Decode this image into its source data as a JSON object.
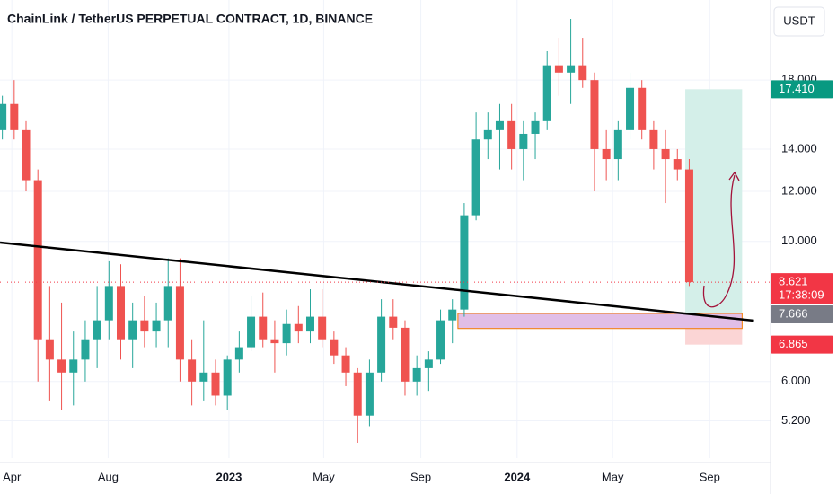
{
  "chart_data": {
    "type": "candlestick",
    "title": "ChainLink / TetherUS PERPETUAL CONTRACT, 1D, BINANCE",
    "currency": "USDT",
    "log_scale": true,
    "up_color": "#26a69a",
    "down_color": "#ef5350",
    "x": [
      "2022-03-20",
      "2022-04-04",
      "2022-04-19",
      "2022-05-04",
      "2022-05-19",
      "2022-06-03",
      "2022-06-18",
      "2022-07-03",
      "2022-07-18",
      "2022-08-02",
      "2022-08-17",
      "2022-09-01",
      "2022-09-16",
      "2022-10-01",
      "2022-10-16",
      "2022-10-31",
      "2022-11-15",
      "2022-11-30",
      "2022-12-15",
      "2022-12-30",
      "2023-01-14",
      "2023-01-29",
      "2023-02-13",
      "2023-02-28",
      "2023-03-15",
      "2023-03-30",
      "2023-04-14",
      "2023-04-29",
      "2023-05-14",
      "2023-05-29",
      "2023-06-13",
      "2023-06-28",
      "2023-07-13",
      "2023-07-28",
      "2023-08-12",
      "2023-08-27",
      "2023-09-11",
      "2023-09-26",
      "2023-10-11",
      "2023-10-26",
      "2023-11-10",
      "2023-11-25",
      "2023-12-10",
      "2023-12-25",
      "2024-01-09",
      "2024-01-24",
      "2024-02-08",
      "2024-02-23",
      "2024-03-09",
      "2024-03-24",
      "2024-04-08",
      "2024-04-23",
      "2024-05-08",
      "2024-05-23",
      "2024-06-07",
      "2024-06-22",
      "2024-07-07",
      "2024-07-22",
      "2024-08-06"
    ],
    "open": [
      15,
      16.5,
      15,
      12.5,
      7,
      6.5,
      6.2,
      6.5,
      7,
      7.5,
      8.5,
      7,
      7.5,
      7.2,
      7.5,
      8.5,
      6.5,
      6,
      6.2,
      5.7,
      6.5,
      6.8,
      7.6,
      7,
      6.9,
      7.4,
      7.2,
      7.6,
      7,
      6.6,
      6.2,
      5.3,
      6.2,
      7.6,
      7.3,
      6,
      6.3,
      6.5,
      7.5,
      7.8,
      11,
      14.5,
      15,
      15.5,
      14,
      14.8,
      15.5,
      19,
      18.5,
      19,
      18,
      14,
      13.5,
      15,
      17.5,
      15,
      14,
      13.5,
      13
    ],
    "high": [
      17,
      18,
      15.5,
      13,
      8.5,
      8,
      7.2,
      7.5,
      8.5,
      9.3,
      9.2,
      8,
      8.2,
      8,
      9.4,
      9.4,
      7,
      7.5,
      6.5,
      6.6,
      7.2,
      8.2,
      8.3,
      7.5,
      7.8,
      7.9,
      8.4,
      8.4,
      7.2,
      6.8,
      6.3,
      6.5,
      8.1,
      8.1,
      7.5,
      6.6,
      6.7,
      7.8,
      8.1,
      11.5,
      16,
      16,
      16.5,
      16.5,
      15.5,
      16,
      20,
      21,
      22.5,
      21,
      18.5,
      15,
      15.5,
      18.5,
      18,
      15.5,
      15,
      14,
      13.5
    ],
    "low": [
      14.5,
      14.5,
      12,
      6,
      5.6,
      5.4,
      5.5,
      6,
      6.3,
      7,
      6.5,
      6.3,
      6.8,
      6.8,
      6.8,
      6,
      5.5,
      5.6,
      5.5,
      5.4,
      6.2,
      6.7,
      6.8,
      6.2,
      6.6,
      6.9,
      6.9,
      6.8,
      6.4,
      5.9,
      4.8,
      5.1,
      6,
      7,
      5.7,
      5.7,
      5.8,
      6.4,
      6.9,
      7.6,
      10.8,
      13.5,
      13,
      13,
      12.5,
      13.5,
      15,
      17,
      16.5,
      17.5,
      12,
      12.5,
      12.5,
      14.5,
      14.5,
      13,
      11.5,
      12.5,
      8.5
    ],
    "close": [
      16.5,
      15,
      12.5,
      7,
      6.5,
      6.2,
      6.5,
      7,
      7.5,
      8.5,
      7,
      7.5,
      7.2,
      7.5,
      8.5,
      6.5,
      6,
      6.2,
      5.7,
      6.5,
      6.8,
      7.6,
      7,
      6.9,
      7.4,
      7.2,
      7.6,
      7,
      6.6,
      6.2,
      5.3,
      6.2,
      7.6,
      7.3,
      6,
      6.3,
      6.5,
      7.5,
      7.8,
      11,
      14.5,
      15,
      15.5,
      14,
      14.8,
      15.5,
      19,
      18.5,
      19,
      18,
      14,
      13.5,
      15,
      17.5,
      15,
      14,
      13.5,
      13,
      8.621
    ],
    "xlim": [
      "2022-03-17",
      "2024-11-17"
    ],
    "xticks": [
      {
        "value": "2022-04-01",
        "label": "Apr"
      },
      {
        "value": "2022-08-01",
        "label": "Aug"
      },
      {
        "value": "2023-01-01",
        "label": "2023"
      },
      {
        "value": "2023-05-01",
        "label": "May"
      },
      {
        "value": "2023-09-01",
        "label": "Sep"
      },
      {
        "value": "2024-01-01",
        "label": "2024"
      },
      {
        "value": "2024-05-01",
        "label": "May"
      },
      {
        "value": "2024-09-01",
        "label": "Sep"
      }
    ],
    "ylim": [
      4.54,
      24.1
    ],
    "yticks": [
      {
        "value": 5.2,
        "label": "5.200"
      },
      {
        "value": 6,
        "label": "6.000"
      },
      {
        "value": 10,
        "label": "10.000"
      },
      {
        "value": 12,
        "label": "12.000"
      },
      {
        "value": 14,
        "label": "14.000"
      },
      {
        "value": 18,
        "label": "18.000"
      }
    ],
    "price_labels": [
      {
        "value": 17.41,
        "label": "17.410",
        "color": "#089981"
      },
      {
        "value": 8.621,
        "label": "8.621",
        "color": "#f23645"
      },
      {
        "value": 7.666,
        "label": "7.666",
        "color": "#787b86"
      },
      {
        "value": 6.865,
        "label": "6.865",
        "color": "#f23645"
      }
    ],
    "countdown": "17:38:09",
    "trendline": {
      "x": [
        "2022-03-17",
        "2024-10-27"
      ],
      "y": [
        9.96,
        7.49
      ],
      "color": "#000000"
    },
    "zone": {
      "x": [
        "2023-10-18",
        "2024-10-12"
      ],
      "y": [
        7.28,
        7.69
      ],
      "color": "#e1bee7",
      "border": "#f57c00"
    },
    "position": {
      "x": [
        "2024-08-01",
        "2024-10-12"
      ],
      "target": 17.41,
      "entry": 7.666,
      "stop": 6.865,
      "profit_color": "#d4efe9",
      "loss_color": "#fbd5d5"
    }
  }
}
